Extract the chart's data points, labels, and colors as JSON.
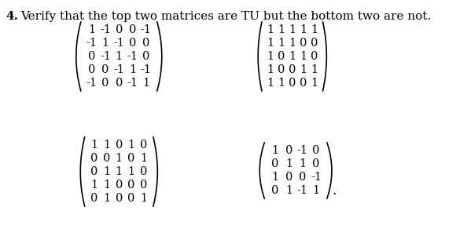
{
  "title_number": "4.",
  "title_text": "Verify that the top two matrices are TU but the bottom two are not.",
  "matrix1": [
    [
      1,
      -1,
      0,
      0,
      -1
    ],
    [
      -1,
      1,
      -1,
      0,
      0
    ],
    [
      0,
      -1,
      1,
      -1,
      0
    ],
    [
      0,
      0,
      -1,
      1,
      -1
    ],
    [
      -1,
      0,
      0,
      -1,
      1
    ]
  ],
  "matrix2": [
    [
      1,
      1,
      1,
      1,
      1
    ],
    [
      1,
      1,
      1,
      0,
      0
    ],
    [
      1,
      0,
      1,
      1,
      0
    ],
    [
      1,
      0,
      0,
      1,
      1
    ],
    [
      1,
      1,
      0,
      0,
      1
    ]
  ],
  "matrix3": [
    [
      1,
      1,
      0,
      1,
      0
    ],
    [
      0,
      0,
      1,
      0,
      1
    ],
    [
      0,
      1,
      1,
      1,
      0
    ],
    [
      1,
      1,
      0,
      0,
      0
    ],
    [
      0,
      1,
      0,
      0,
      1
    ]
  ],
  "matrix4": [
    [
      1,
      0,
      -1,
      0
    ],
    [
      0,
      1,
      1,
      0
    ],
    [
      1,
      0,
      0,
      -1
    ],
    [
      0,
      1,
      -1,
      1
    ]
  ],
  "bg_color": "#ffffff",
  "text_color": "#000000",
  "font_size": 11,
  "title_font_size": 11
}
